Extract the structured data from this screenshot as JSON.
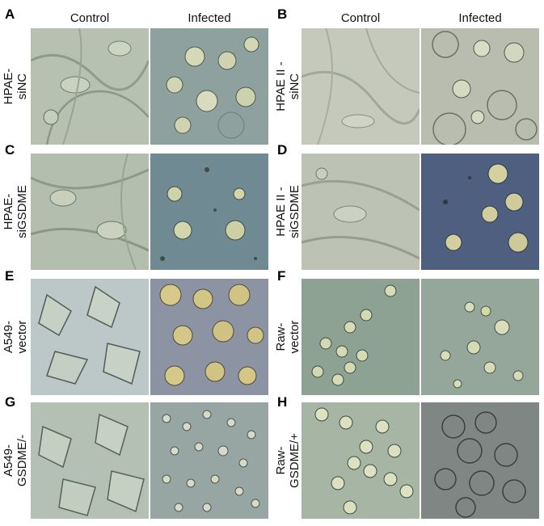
{
  "panels": [
    {
      "letter": "A",
      "line1": "HPAE-",
      "line2": "siNC"
    },
    {
      "letter": "B",
      "line1": "HPAE II -",
      "line2": "siNC"
    },
    {
      "letter": "C",
      "line1": "HPAE-",
      "line2": "siGSDME"
    },
    {
      "letter": "D",
      "line1": "HPAE II -",
      "line2": "siGSDME"
    },
    {
      "letter": "E",
      "line1": "A549-",
      "line2": "vector"
    },
    {
      "letter": "F",
      "line1": "Raw-",
      "line2": "vector"
    },
    {
      "letter": "G",
      "line1": "A549-",
      "line2": "GSDME/-"
    },
    {
      "letter": "H",
      "line1": "Raw-",
      "line2": "GSDME/+"
    }
  ],
  "columns": {
    "control": "Control",
    "infected": "Infected"
  },
  "colors": {
    "control_bg": "#b8c2b3",
    "infected_bg": "#7f949a",
    "cell_body": "#d9e0c4",
    "cell_edge": "#4d5a4c",
    "pyroptotic": "#c9c07a"
  }
}
